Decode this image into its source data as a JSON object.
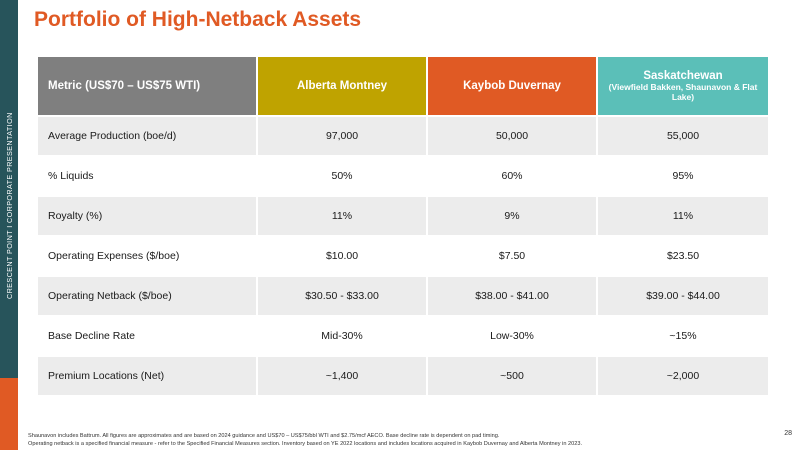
{
  "sidebar": {
    "text": "CRESCENT POINT  I  CORPORATE PRESENTATION",
    "color": "#27545b",
    "accent": "#e05a24"
  },
  "title": "Portfolio of High-Netback Assets",
  "table": {
    "header": {
      "metric": "Metric (US$70 – US$75 WTI)",
      "col1": "Alberta Montney",
      "col2": "Kaybob Duvernay",
      "col3": "Saskatchewan",
      "col3_sub": "(Viewfield Bakken, Shaunavon & Flat Lake)"
    },
    "rows": [
      {
        "label": "Average Production (boe/d)",
        "v1": "97,000",
        "v2": "50,000",
        "v3": "55,000"
      },
      {
        "label": "% Liquids",
        "v1": "50%",
        "v2": "60%",
        "v3": "95%"
      },
      {
        "label": "Royalty (%)",
        "v1": "11%",
        "v2": "9%",
        "v3": "11%"
      },
      {
        "label": "Operating Expenses ($/boe)",
        "v1": "$10.00",
        "v2": "$7.50",
        "v3": "$23.50"
      },
      {
        "label": "Operating Netback ($/boe)",
        "v1": "$30.50 - $33.00",
        "v2": "$38.00 - $41.00",
        "v3": "$39.00 - $44.00"
      },
      {
        "label": "Base Decline Rate",
        "v1": "Mid-30%",
        "v2": "Low-30%",
        "v3": "~15%"
      },
      {
        "label": "Premium Locations (Net)",
        "v1": "~1,400",
        "v2": "~500",
        "v3": "~2,000"
      }
    ],
    "colors": {
      "metric": "#7f7f7f",
      "alberta": "#bfa300",
      "kaybob": "#e05a24",
      "saskatchewan": "#5bbfb8"
    }
  },
  "footnote": {
    "line1": "Shaunavon includes Battrum. All figures are approximates and are based on 2024 guidance and US$70 – US$75/bbl WTI and $2.75/mcf AECO. Base decline rate is dependent on pad timing.",
    "line2": "Operating netback is a specified financial measure - refer to the Specified Financial Measures section. Inventory based on YE 2022 locations and includes locations acquired in Kaybob Duvernay and Alberta Montney in 2023."
  },
  "page_number": "28"
}
